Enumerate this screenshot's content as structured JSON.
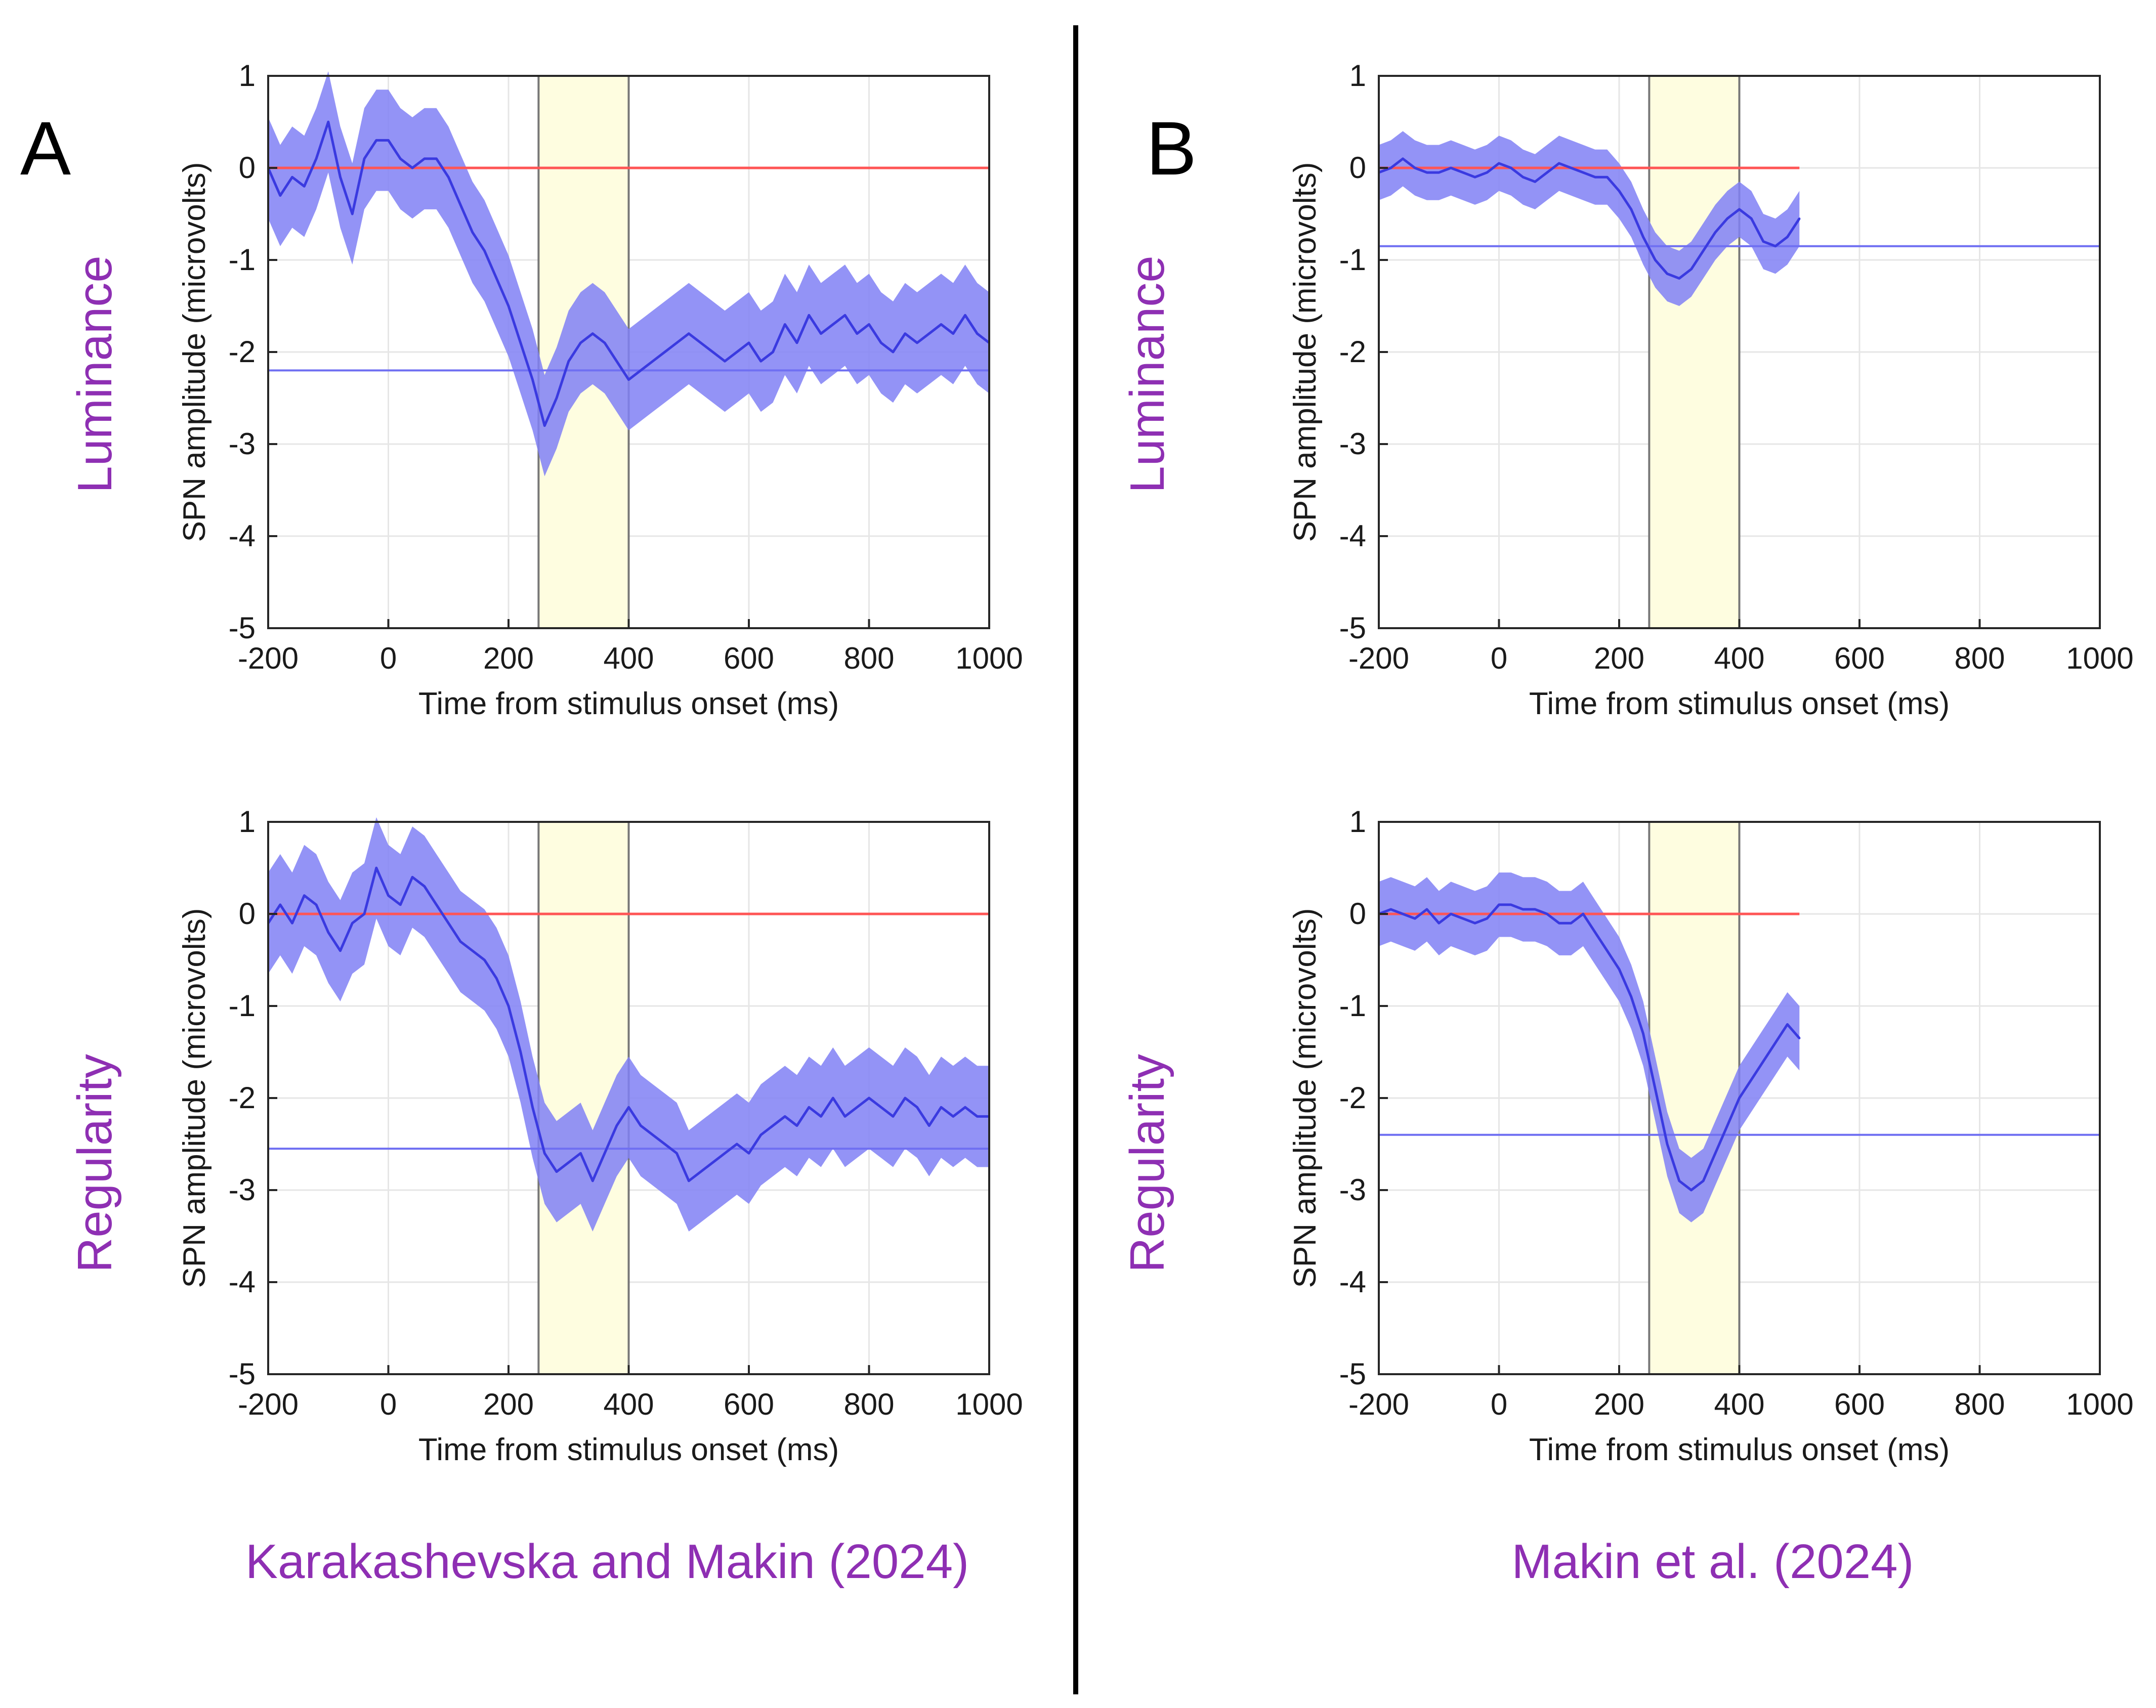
{
  "panels": {
    "left_letter": "A",
    "right_letter": "B"
  },
  "row_labels": [
    "Luminance",
    "Regularity"
  ],
  "captions": [
    "Karakashevska and Makin (2024)",
    "Makin et al. (2024)"
  ],
  "colors": {
    "mean_line": "#3a3ae0",
    "ci_band": "#8080f5",
    "zero_line": "#ff5555",
    "mean_amplitude_line": "#6f6ff2",
    "window_fill": "#fefde0",
    "window_edge": "#777777",
    "label_purple": "#8e2fb3"
  },
  "chart_data": [
    {
      "type": "line",
      "row": "Luminance",
      "study": "Karakashevska and Makin (2024)",
      "xlabel": "Time from stimulus onset (ms)",
      "ylabel": "SPN amplitude (microvolts)",
      "xlim": [
        -200,
        1000
      ],
      "ylim": [
        -5,
        1
      ],
      "xticks": [
        -200,
        0,
        200,
        400,
        600,
        800,
        1000
      ],
      "yticks": [
        1,
        0,
        -1,
        -2,
        -3,
        -4,
        -5
      ],
      "grid": true,
      "analysis_window": [
        250,
        400
      ],
      "reference_line": 0,
      "mean_amplitude": -2.2,
      "ci_half_width": 0.55,
      "x": [
        -200,
        -180,
        -160,
        -140,
        -120,
        -100,
        -80,
        -60,
        -40,
        -20,
        0,
        20,
        40,
        60,
        80,
        100,
        120,
        140,
        160,
        180,
        200,
        220,
        240,
        260,
        280,
        300,
        320,
        340,
        360,
        380,
        400,
        420,
        440,
        460,
        480,
        500,
        520,
        540,
        560,
        580,
        600,
        620,
        640,
        660,
        680,
        700,
        720,
        740,
        760,
        780,
        800,
        820,
        840,
        860,
        880,
        900,
        920,
        940,
        960,
        980,
        1000
      ],
      "values": [
        0.0,
        -0.3,
        -0.1,
        -0.2,
        0.1,
        0.5,
        -0.1,
        -0.5,
        0.1,
        0.3,
        0.3,
        0.1,
        0.0,
        0.1,
        0.1,
        -0.1,
        -0.4,
        -0.7,
        -0.9,
        -1.2,
        -1.5,
        -1.9,
        -2.3,
        -2.8,
        -2.5,
        -2.1,
        -1.9,
        -1.8,
        -1.9,
        -2.1,
        -2.3,
        -2.2,
        -2.1,
        -2.0,
        -1.9,
        -1.8,
        -1.9,
        -2.0,
        -2.1,
        -2.0,
        -1.9,
        -2.1,
        -2.0,
        -1.7,
        -1.9,
        -1.6,
        -1.8,
        -1.7,
        -1.6,
        -1.8,
        -1.7,
        -1.9,
        -2.0,
        -1.8,
        -1.9,
        -1.8,
        -1.7,
        -1.8,
        -1.6,
        -1.8,
        -1.9
      ]
    },
    {
      "type": "line",
      "row": "Luminance",
      "study": "Makin et al. (2024)",
      "xlabel": "Time from stimulus onset (ms)",
      "ylabel": "SPN amplitude (microvolts)",
      "xlim": [
        -200,
        1000
      ],
      "ylim": [
        -5,
        1
      ],
      "xticks": [
        -200,
        0,
        200,
        400,
        600,
        800,
        1000
      ],
      "yticks": [
        1,
        0,
        -1,
        -2,
        -3,
        -4,
        -5
      ],
      "grid": true,
      "analysis_window": [
        250,
        400
      ],
      "reference_line": 0,
      "reference_line_xlim": [
        -200,
        500
      ],
      "mean_amplitude": -0.85,
      "ci_half_width": 0.3,
      "x": [
        -200,
        -180,
        -160,
        -140,
        -120,
        -100,
        -80,
        -60,
        -40,
        -20,
        0,
        20,
        40,
        60,
        80,
        100,
        120,
        140,
        160,
        180,
        200,
        220,
        240,
        260,
        280,
        300,
        320,
        340,
        360,
        380,
        400,
        420,
        440,
        460,
        480,
        500
      ],
      "values": [
        -0.05,
        0.0,
        0.1,
        0.0,
        -0.05,
        -0.05,
        0.0,
        -0.05,
        -0.1,
        -0.05,
        0.05,
        0.0,
        -0.1,
        -0.15,
        -0.05,
        0.05,
        0.0,
        -0.05,
        -0.1,
        -0.1,
        -0.25,
        -0.45,
        -0.75,
        -1.0,
        -1.15,
        -1.2,
        -1.1,
        -0.9,
        -0.7,
        -0.55,
        -0.45,
        -0.55,
        -0.8,
        -0.85,
        -0.75,
        -0.55
      ]
    },
    {
      "type": "line",
      "row": "Regularity",
      "study": "Karakashevska and Makin (2024)",
      "xlabel": "Time from stimulus onset (ms)",
      "ylabel": "SPN amplitude (microvolts)",
      "xlim": [
        -200,
        1000
      ],
      "ylim": [
        -5,
        1
      ],
      "xticks": [
        -200,
        0,
        200,
        400,
        600,
        800,
        1000
      ],
      "yticks": [
        1,
        0,
        -1,
        -2,
        -3,
        -4,
        -5
      ],
      "grid": true,
      "analysis_window": [
        250,
        400
      ],
      "reference_line": 0,
      "mean_amplitude": -2.55,
      "ci_half_width": 0.55,
      "x": [
        -200,
        -180,
        -160,
        -140,
        -120,
        -100,
        -80,
        -60,
        -40,
        -20,
        0,
        20,
        40,
        60,
        80,
        100,
        120,
        140,
        160,
        180,
        200,
        220,
        240,
        260,
        280,
        300,
        320,
        340,
        360,
        380,
        400,
        420,
        440,
        460,
        480,
        500,
        520,
        540,
        560,
        580,
        600,
        620,
        640,
        660,
        680,
        700,
        720,
        740,
        760,
        780,
        800,
        820,
        840,
        860,
        880,
        900,
        920,
        940,
        960,
        980,
        1000
      ],
      "values": [
        -0.1,
        0.1,
        -0.1,
        0.2,
        0.1,
        -0.2,
        -0.4,
        -0.1,
        0.0,
        0.5,
        0.2,
        0.1,
        0.4,
        0.3,
        0.1,
        -0.1,
        -0.3,
        -0.4,
        -0.5,
        -0.7,
        -1.0,
        -1.5,
        -2.1,
        -2.6,
        -2.8,
        -2.7,
        -2.6,
        -2.9,
        -2.6,
        -2.3,
        -2.1,
        -2.3,
        -2.4,
        -2.5,
        -2.6,
        -2.9,
        -2.8,
        -2.7,
        -2.6,
        -2.5,
        -2.6,
        -2.4,
        -2.3,
        -2.2,
        -2.3,
        -2.1,
        -2.2,
        -2.0,
        -2.2,
        -2.1,
        -2.0,
        -2.1,
        -2.2,
        -2.0,
        -2.1,
        -2.3,
        -2.1,
        -2.2,
        -2.1,
        -2.2,
        -2.2
      ]
    },
    {
      "type": "line",
      "row": "Regularity",
      "study": "Makin et al. (2024)",
      "xlabel": "Time from stimulus onset (ms)",
      "ylabel": "SPN amplitude (microvolts)",
      "xlim": [
        -200,
        1000
      ],
      "ylim": [
        -5,
        1
      ],
      "xticks": [
        -200,
        0,
        200,
        400,
        600,
        800,
        1000
      ],
      "yticks": [
        1,
        0,
        -1,
        -2,
        -3,
        -4,
        -5
      ],
      "grid": true,
      "analysis_window": [
        250,
        400
      ],
      "reference_line": 0,
      "reference_line_xlim": [
        -200,
        500
      ],
      "mean_amplitude": -2.4,
      "ci_half_width": 0.35,
      "x": [
        -200,
        -180,
        -160,
        -140,
        -120,
        -100,
        -80,
        -60,
        -40,
        -20,
        0,
        20,
        40,
        60,
        80,
        100,
        120,
        140,
        160,
        180,
        200,
        220,
        240,
        260,
        280,
        300,
        320,
        340,
        360,
        380,
        400,
        420,
        440,
        460,
        480,
        500
      ],
      "values": [
        0.0,
        0.05,
        0.0,
        -0.05,
        0.05,
        -0.1,
        0.0,
        -0.05,
        -0.1,
        -0.05,
        0.1,
        0.1,
        0.05,
        0.05,
        0.0,
        -0.1,
        -0.1,
        0.0,
        -0.2,
        -0.4,
        -0.6,
        -0.9,
        -1.3,
        -1.9,
        -2.5,
        -2.9,
        -3.0,
        -2.9,
        -2.6,
        -2.3,
        -2.0,
        -1.8,
        -1.6,
        -1.4,
        -1.2,
        -1.35
      ]
    }
  ]
}
